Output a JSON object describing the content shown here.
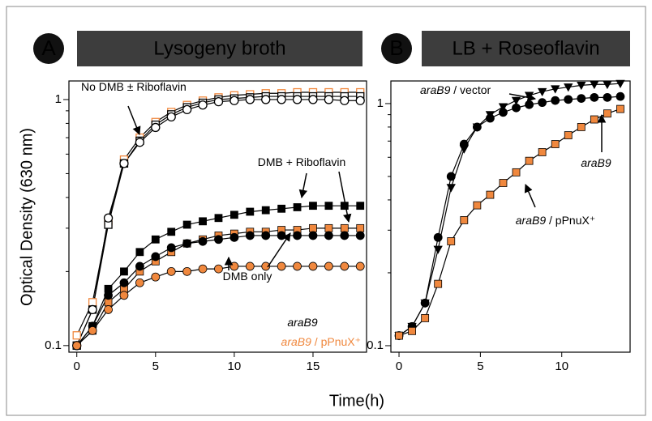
{
  "chart_data": [
    {
      "type": "line",
      "panel_label": "A",
      "title": "Lysogeny broth",
      "ylabel": "Optical Density (630 nm)",
      "log_y": true,
      "xlim": [
        -0.5,
        18.4
      ],
      "ylim": [
        0.094,
        1.19
      ],
      "xticks": [
        0,
        5,
        10,
        15
      ],
      "yticks": [
        0.1,
        1
      ],
      "yminorticks": [
        0.2,
        0.3,
        0.4,
        0.5,
        0.6,
        0.7,
        0.8,
        0.9
      ],
      "x": [
        0,
        1,
        2,
        3,
        4,
        5,
        6,
        7,
        8,
        9,
        10,
        11,
        12,
        13,
        14,
        15,
        16,
        17,
        18
      ],
      "series": [
        {
          "marker": "square",
          "filled": false,
          "color": "#f0883e",
          "edge": "#f0883e",
          "values": [
            0.11,
            0.15,
            0.32,
            0.57,
            0.7,
            0.81,
            0.89,
            0.95,
            0.99,
            1.02,
            1.04,
            1.05,
            1.06,
            1.06,
            1.07,
            1.07,
            1.07,
            1.07,
            1.07
          ]
        },
        {
          "marker": "square",
          "filled": false,
          "color": "#000000",
          "edge": "#000000",
          "values": [
            0.1,
            0.14,
            0.31,
            0.55,
            0.68,
            0.79,
            0.87,
            0.93,
            0.97,
            1.0,
            1.01,
            1.02,
            1.03,
            1.03,
            1.03,
            1.03,
            1.03,
            1.03,
            1.03
          ]
        },
        {
          "marker": "circle",
          "filled": false,
          "color": "#000000",
          "edge": "#000000",
          "values": [
            0.1,
            0.14,
            0.33,
            0.55,
            0.67,
            0.77,
            0.85,
            0.91,
            0.95,
            0.98,
            0.99,
            1.0,
            1.0,
            1.0,
            1.0,
            1.0,
            1.0,
            0.99,
            0.99
          ]
        },
        {
          "marker": "square",
          "filled": true,
          "color": "#000000",
          "edge": "#000000",
          "values": [
            0.1,
            0.12,
            0.17,
            0.2,
            0.24,
            0.27,
            0.29,
            0.31,
            0.32,
            0.33,
            0.34,
            0.35,
            0.355,
            0.36,
            0.365,
            0.37,
            0.37,
            0.37,
            0.37
          ]
        },
        {
          "marker": "square",
          "filled": true,
          "color": "#f0883e",
          "edge": "#000000",
          "values": [
            0.1,
            0.115,
            0.15,
            0.17,
            0.2,
            0.22,
            0.24,
            0.26,
            0.27,
            0.28,
            0.285,
            0.29,
            0.29,
            0.295,
            0.295,
            0.3,
            0.3,
            0.3,
            0.3
          ]
        },
        {
          "marker": "circle",
          "filled": true,
          "color": "#000000",
          "edge": "#000000",
          "values": [
            0.1,
            0.12,
            0.16,
            0.18,
            0.21,
            0.23,
            0.25,
            0.26,
            0.265,
            0.27,
            0.275,
            0.28,
            0.28,
            0.28,
            0.28,
            0.28,
            0.28,
            0.28,
            0.28
          ]
        },
        {
          "marker": "circle",
          "filled": true,
          "color": "#f0883e",
          "edge": "#000000",
          "values": [
            0.1,
            0.115,
            0.14,
            0.16,
            0.18,
            0.19,
            0.2,
            0.2,
            0.205,
            0.205,
            0.21,
            0.21,
            0.21,
            0.21,
            0.21,
            0.21,
            0.21,
            0.21,
            0.21
          ]
        }
      ],
      "annotations": [
        {
          "label": [
            {
              "text": "No DMB ± Riboflavin"
            }
          ]
        },
        {
          "label": [
            {
              "text": "DMB + Riboflavin"
            }
          ]
        },
        {
          "label": [
            {
              "text": "DMB only"
            }
          ]
        }
      ],
      "legend": [
        {
          "color": "#000000",
          "label": [
            {
              "text": "araB9",
              "italic": true
            }
          ]
        },
        {
          "color": "#f0883e",
          "label": [
            {
              "text": "araB9",
              "italic": true
            },
            {
              "text": " / pPnuX⁺"
            }
          ]
        }
      ]
    },
    {
      "type": "line",
      "panel_label": "B",
      "title": "LB + Roseoflavin",
      "xlabel": "Time(h)",
      "log_y": true,
      "xlim": [
        -0.5,
        14.2
      ],
      "ylim": [
        0.094,
        1.24
      ],
      "xticks": [
        0,
        5,
        10
      ],
      "yticks": [
        0.1,
        1
      ],
      "yminorticks": [
        0.2,
        0.3,
        0.4,
        0.5,
        0.6,
        0.7,
        0.8,
        0.9
      ],
      "x": [
        0,
        0.8,
        1.6,
        2.4,
        3.2,
        4,
        4.8,
        5.6,
        6.4,
        7.2,
        8,
        8.8,
        9.6,
        10.4,
        11.2,
        12,
        12.8,
        13.6
      ],
      "series": [
        {
          "marker": "triangle",
          "filled": true,
          "color": "#000000",
          "edge": "#000000",
          "values": [
            0.11,
            0.12,
            0.15,
            0.25,
            0.45,
            0.65,
            0.8,
            0.9,
            0.97,
            1.03,
            1.08,
            1.12,
            1.15,
            1.17,
            1.19,
            1.2,
            1.2,
            1.21
          ]
        },
        {
          "marker": "circle",
          "filled": true,
          "color": "#000000",
          "edge": "#000000",
          "values": [
            0.11,
            0.12,
            0.15,
            0.28,
            0.5,
            0.68,
            0.8,
            0.87,
            0.92,
            0.96,
            0.99,
            1.01,
            1.03,
            1.04,
            1.05,
            1.06,
            1.06,
            1.07
          ]
        },
        {
          "marker": "square",
          "filled": true,
          "color": "#f0883e",
          "edge": "#000000",
          "values": [
            0.11,
            0.115,
            0.13,
            0.18,
            0.27,
            0.33,
            0.38,
            0.42,
            0.47,
            0.52,
            0.58,
            0.63,
            0.68,
            0.74,
            0.8,
            0.86,
            0.91,
            0.95
          ]
        }
      ],
      "annotations": [
        {
          "label": [
            {
              "text": "araB9",
              "italic": true
            },
            {
              "text": " / vector"
            }
          ]
        },
        {
          "label": [
            {
              "text": "araB9",
              "italic": true
            }
          ]
        },
        {
          "label": [
            {
              "text": "araB9",
              "italic": true
            },
            {
              "text": " / pPnuX⁺"
            }
          ]
        }
      ]
    }
  ]
}
